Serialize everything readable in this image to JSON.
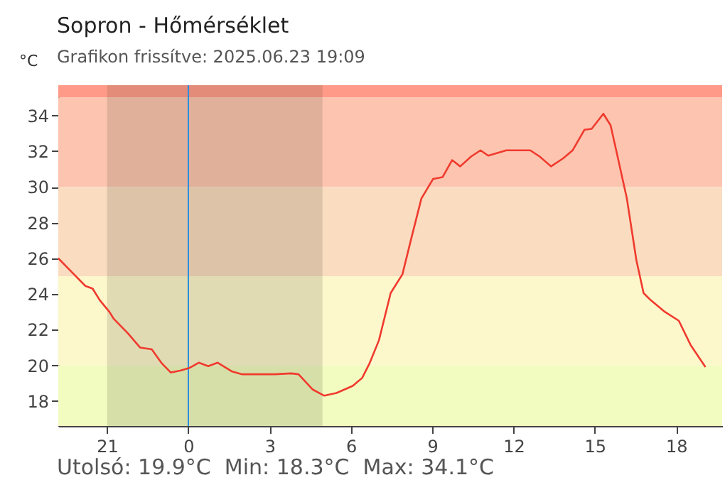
{
  "chart_data": {
    "type": "line",
    "title": "Sopron - Hőmérséklet",
    "subtitle": "Grafikon frissítve: 2025.06.23 19:09",
    "ylabel": "°C",
    "annotations": [
      "Utolsó: 19.9°C  Min: 18.3°C  Max: 34.1°C"
    ],
    "xlim": [
      "2025-06-22T19:12",
      "2025-06-23T19:42"
    ],
    "ylim": [
      16.6,
      35.7
    ],
    "xticks": [
      {
        "value": "2025-06-22T21:00",
        "label": "21"
      },
      {
        "value": "2025-06-23T00:00",
        "label": "0"
      },
      {
        "value": "2025-06-23T03:00",
        "label": "3"
      },
      {
        "value": "2025-06-23T06:00",
        "label": "6"
      },
      {
        "value": "2025-06-23T09:00",
        "label": "9"
      },
      {
        "value": "2025-06-23T12:00",
        "label": "12"
      },
      {
        "value": "2025-06-23T15:00",
        "label": "15"
      },
      {
        "value": "2025-06-23T18:00",
        "label": "18"
      }
    ],
    "yticks": [
      18,
      20,
      22,
      24,
      26,
      28,
      30,
      32,
      34
    ],
    "grid": false,
    "marker": "none",
    "line_style": "solid",
    "series": [
      {
        "color": "#f03a2e",
        "x": [
          "2025-06-22T19:12",
          "2025-06-22T19:41",
          "2025-06-22T20:12",
          "2025-06-22T20:28",
          "2025-06-22T20:44",
          "2025-06-22T21:05",
          "2025-06-22T21:15",
          "2025-06-22T21:46",
          "2025-06-22T22:13",
          "2025-06-22T22:39",
          "2025-06-22T23:00",
          "2025-06-22T23:21",
          "2025-06-22T23:42",
          "2025-06-23T00:02",
          "2025-06-23T00:23",
          "2025-06-23T00:44",
          "2025-06-23T01:05",
          "2025-06-23T01:37",
          "2025-06-23T01:58",
          "2025-06-23T03:11",
          "2025-06-23T03:48",
          "2025-06-23T04:04",
          "2025-06-23T04:35",
          "2025-06-23T05:01",
          "2025-06-23T05:28",
          "2025-06-23T06:04",
          "2025-06-23T06:25",
          "2025-06-23T06:41",
          "2025-06-23T07:02",
          "2025-06-23T07:28",
          "2025-06-23T07:54",
          "2025-06-23T08:15",
          "2025-06-23T08:36",
          "2025-06-23T09:02",
          "2025-06-23T09:23",
          "2025-06-23T09:44",
          "2025-06-23T10:02",
          "2025-06-23T10:26",
          "2025-06-23T10:47",
          "2025-06-23T11:04",
          "2025-06-23T11:44",
          "2025-06-23T12:37",
          "2025-06-23T12:58",
          "2025-06-23T13:23",
          "2025-06-23T13:50",
          "2025-06-23T14:11",
          "2025-06-23T14:37",
          "2025-06-23T14:53",
          "2025-06-23T15:19",
          "2025-06-23T15:35",
          "2025-06-23T15:50",
          "2025-06-23T16:11",
          "2025-06-23T16:32",
          "2025-06-23T16:48",
          "2025-06-23T17:04",
          "2025-06-23T17:35",
          "2025-06-23T18:06",
          "2025-06-23T18:32",
          "2025-06-23T19:05"
        ],
        "values": [
          26.0,
          25.25,
          24.45,
          24.3,
          23.65,
          23.0,
          22.6,
          21.8,
          21.0,
          20.9,
          20.15,
          19.6,
          19.7,
          19.85,
          20.15,
          19.95,
          20.15,
          19.65,
          19.5,
          19.5,
          19.55,
          19.5,
          18.65,
          18.3,
          18.45,
          18.85,
          19.3,
          20.1,
          21.4,
          24.05,
          25.1,
          27.25,
          29.35,
          30.45,
          30.55,
          31.5,
          31.15,
          31.7,
          32.05,
          31.75,
          32.05,
          32.05,
          31.7,
          31.15,
          31.6,
          32.05,
          33.2,
          33.25,
          34.1,
          33.45,
          31.75,
          29.35,
          25.9,
          24.05,
          23.65,
          23.0,
          22.5,
          21.15,
          19.9
        ]
      }
    ],
    "ref_lines": [
      {
        "axis": "x",
        "value": "2025-06-23T00:00",
        "color": "#2a8fe0"
      }
    ],
    "bands": [
      {
        "axis": "y",
        "from": 35.0,
        "to": 35.7,
        "color": "#ff9a88"
      },
      {
        "axis": "y",
        "from": 30,
        "to": 35.0,
        "color": "#fdc5b0"
      },
      {
        "axis": "y",
        "from": 25,
        "to": 30,
        "color": "#fadcc0"
      },
      {
        "axis": "y",
        "from": 20,
        "to": 25,
        "color": "#fdf7cc"
      },
      {
        "axis": "y",
        "from": 16.6,
        "to": 20,
        "color": "#f3fcc0"
      },
      {
        "axis": "x",
        "from": "2025-06-22T21:00",
        "to": "2025-06-23T04:57",
        "color": "#3a3a2a"
      }
    ]
  }
}
